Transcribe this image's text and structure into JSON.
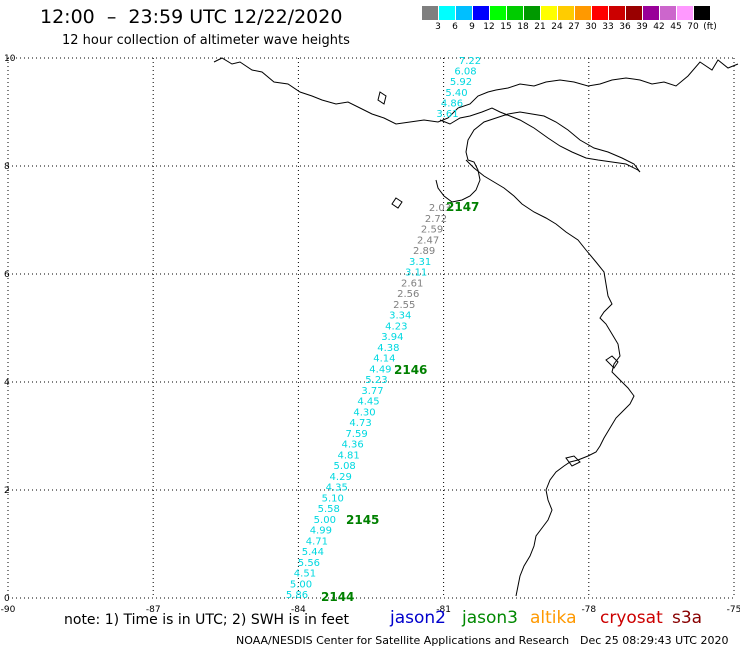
{
  "header": {
    "title": "12:00  –  23:59 UTC 12/22/2020",
    "subtitle": "12 hour collection of altimeter wave heights"
  },
  "colorbar": {
    "swatches": [
      "#7f7f7f",
      "#00ffff",
      "#00bfff",
      "#0000ff",
      "#00ff00",
      "#00cc00",
      "#009900",
      "#ffff00",
      "#ffcc00",
      "#ff9900",
      "#ff0000",
      "#cc0000",
      "#990000",
      "#990099",
      "#cc66cc",
      "#ff99ff",
      "#000000"
    ],
    "labels": [
      "3",
      "6",
      "9",
      "12",
      "15",
      "18",
      "21",
      "24",
      "27",
      "30",
      "33",
      "36",
      "39",
      "42",
      "45",
      "70",
      "(ft)"
    ]
  },
  "axes": {
    "x_ticks": [
      "-90",
      "-87",
      "-84",
      "-81",
      "-78",
      "-75"
    ],
    "y_ticks": [
      "10",
      "8",
      "6",
      "4",
      "2",
      "0"
    ]
  },
  "passes": [
    {
      "label": "2147",
      "color": "#008000"
    },
    {
      "label": "2146",
      "color": "#008000"
    },
    {
      "label": "2145",
      "color": "#008000"
    },
    {
      "label": "2144",
      "color": "#008000"
    }
  ],
  "track_north": [
    {
      "v": "7.22",
      "c": "cyan"
    },
    {
      "v": "6.08",
      "c": "cyan"
    },
    {
      "v": "5.92",
      "c": "cyan"
    },
    {
      "v": "5.40",
      "c": "cyan"
    },
    {
      "v": "4.86",
      "c": "cyan"
    },
    {
      "v": "3.61",
      "c": "cyan"
    }
  ],
  "track_main": [
    {
      "v": "2.03",
      "c": "gray"
    },
    {
      "v": "2.72",
      "c": "gray"
    },
    {
      "v": "2.59",
      "c": "gray"
    },
    {
      "v": "2.47",
      "c": "gray"
    },
    {
      "v": "2.89",
      "c": "gray"
    },
    {
      "v": "3.31",
      "c": "cyan"
    },
    {
      "v": "3.11",
      "c": "cyan"
    },
    {
      "v": "2.61",
      "c": "gray"
    },
    {
      "v": "2.56",
      "c": "gray"
    },
    {
      "v": "2.55",
      "c": "gray"
    },
    {
      "v": "3.34",
      "c": "cyan"
    },
    {
      "v": "4.23",
      "c": "cyan"
    },
    {
      "v": "3.94",
      "c": "cyan"
    },
    {
      "v": "4.38",
      "c": "cyan"
    },
    {
      "v": "4.14",
      "c": "cyan"
    },
    {
      "v": "4.49",
      "c": "cyan"
    },
    {
      "v": "5.23",
      "c": "cyan"
    },
    {
      "v": "3.77",
      "c": "cyan"
    },
    {
      "v": "4.45",
      "c": "cyan"
    },
    {
      "v": "4.30",
      "c": "cyan"
    },
    {
      "v": "4.73",
      "c": "cyan"
    },
    {
      "v": "7.59",
      "c": "cyan"
    },
    {
      "v": "4.36",
      "c": "cyan"
    },
    {
      "v": "4.81",
      "c": "cyan"
    },
    {
      "v": "5.08",
      "c": "cyan"
    },
    {
      "v": "4.29",
      "c": "cyan"
    },
    {
      "v": "4.35",
      "c": "cyan"
    },
    {
      "v": "5.10",
      "c": "cyan"
    },
    {
      "v": "5.58",
      "c": "cyan"
    },
    {
      "v": "5.00",
      "c": "cyan"
    },
    {
      "v": "4.99",
      "c": "cyan"
    },
    {
      "v": "4.71",
      "c": "cyan"
    },
    {
      "v": "5.44",
      "c": "cyan"
    },
    {
      "v": "5.56",
      "c": "cyan"
    },
    {
      "v": "4.51",
      "c": "cyan"
    },
    {
      "v": "5.00",
      "c": "cyan"
    },
    {
      "v": "5.86",
      "c": "cyan"
    }
  ],
  "colors": {
    "cyan": "#00d8e0",
    "gray": "#808080",
    "axis": "#000000",
    "land": "#000000"
  },
  "legend": {
    "note": "note:  1) Time is in UTC;  2) SWH is in feet",
    "jason2": {
      "text": "jason2",
      "color": "#0000cc"
    },
    "jason3": {
      "text": "jason3",
      "color": "#008800"
    },
    "altika": {
      "text": "altika",
      "color": "#ff9900"
    },
    "cryosat": {
      "text": "cryosat",
      "color": "#cc0000"
    },
    "s3a": {
      "text": "s3a",
      "color": "#880000"
    }
  },
  "footer": {
    "left": "NOAA/NESDIS Center for Satellite Applications and Research",
    "right": "Dec 25 08:29:43 UTC 2020"
  }
}
